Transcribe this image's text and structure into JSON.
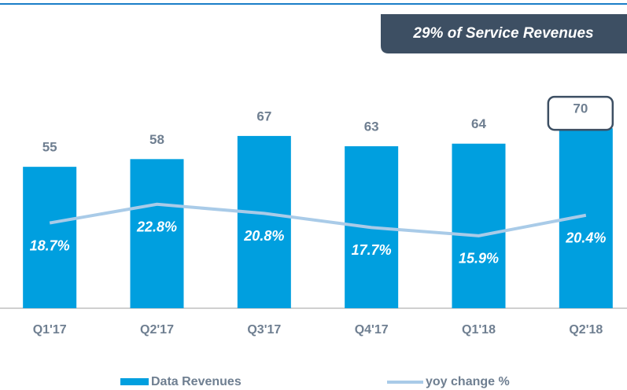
{
  "chart_data": {
    "type": "bar_line",
    "annotation": "29% of Service Revenues",
    "categories": [
      "Q1'17",
      "Q2'17",
      "Q3'17",
      "Q4'17",
      "Q1'18",
      "Q2'18"
    ],
    "series": [
      {
        "name": "Data Revenues",
        "color": "#009fdf",
        "type": "bar",
        "values": [
          55,
          58,
          67,
          63,
          64,
          70
        ]
      },
      {
        "name": "yoy change %",
        "color": "#a9cbe8",
        "type": "line",
        "axis": "y2",
        "values": [
          18.7,
          22.8,
          20.8,
          17.7,
          15.9,
          20.4
        ],
        "value_labels": [
          "18.7%",
          "22.8%",
          "20.8%",
          "17.7%",
          "15.9%",
          "20.4%"
        ]
      }
    ],
    "ylim": [
      0,
      100
    ],
    "y2lim": [
      0,
      56.4
    ],
    "highlight": 5
  }
}
